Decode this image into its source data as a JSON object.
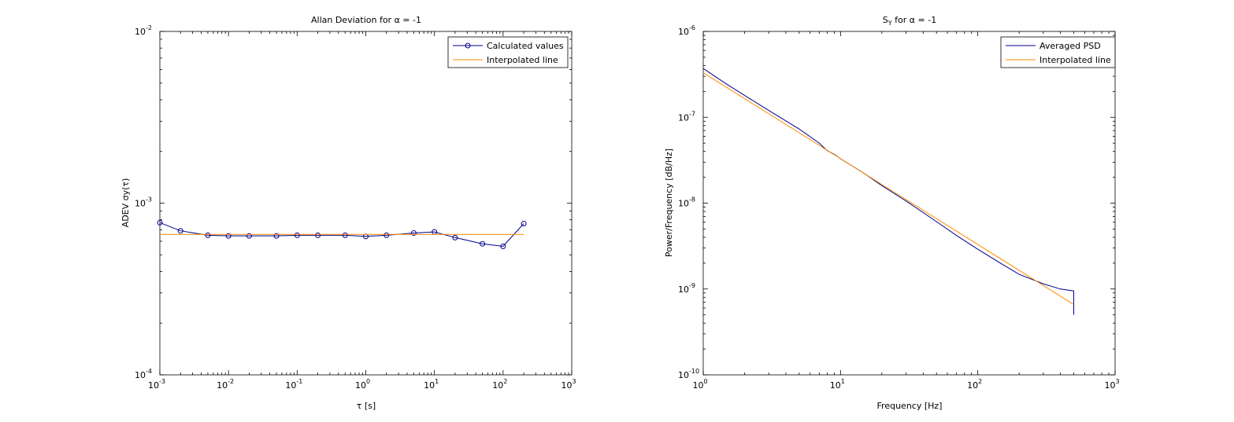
{
  "chart_data": [
    {
      "type": "line",
      "xscale": "log",
      "yscale": "log",
      "title": "Allan Deviation for α = -1",
      "xlabel": "τ [s]",
      "ylabel": "ADEV σy(τ)",
      "xlim": [
        0.001,
        1000
      ],
      "ylim": [
        0.0001,
        0.01
      ],
      "x_ticks": [
        {
          "base": "10",
          "exp": "-3"
        },
        {
          "base": "10",
          "exp": "-2"
        },
        {
          "base": "10",
          "exp": "-1"
        },
        {
          "base": "10",
          "exp": "0"
        },
        {
          "base": "10",
          "exp": "1"
        },
        {
          "base": "10",
          "exp": "2"
        },
        {
          "base": "10",
          "exp": "3"
        }
      ],
      "y_ticks": [
        {
          "base": "10",
          "exp": "-4"
        },
        {
          "base": "10",
          "exp": "-3"
        },
        {
          "base": "10",
          "exp": "-2"
        }
      ],
      "legend_position": "top-right",
      "series": [
        {
          "name": "Calculated values",
          "color": "#00008b",
          "marker": "circle",
          "x": [
            0.001,
            0.002,
            0.005,
            0.01,
            0.02,
            0.05,
            0.1,
            0.2,
            0.5,
            1,
            2,
            5,
            10,
            20,
            50,
            100,
            200
          ],
          "y": [
            0.00077,
            0.00069,
            0.00065,
            0.000645,
            0.000645,
            0.000645,
            0.00065,
            0.00065,
            0.00065,
            0.00064,
            0.00065,
            0.00067,
            0.00068,
            0.00063,
            0.00058,
            0.00056,
            0.00076
          ]
        },
        {
          "name": "Interpolated line",
          "color": "#ff8c00",
          "marker": "none",
          "x": [
            0.001,
            200
          ],
          "y": [
            0.000658,
            0.000658
          ]
        }
      ]
    },
    {
      "type": "line",
      "xscale": "log",
      "yscale": "log",
      "title": "S",
      "title_sub": "Y",
      "title_suffix": " for α = -1",
      "xlabel": "Frequency [Hz]",
      "ylabel": "Power/Frequency [dB/Hz]",
      "xlim": [
        1,
        1000
      ],
      "ylim": [
        1e-10,
        1e-06
      ],
      "x_ticks": [
        {
          "base": "10",
          "exp": "0"
        },
        {
          "base": "10",
          "exp": "1"
        },
        {
          "base": "10",
          "exp": "2"
        },
        {
          "base": "10",
          "exp": "3"
        }
      ],
      "y_ticks": [
        {
          "base": "10",
          "exp": "-10"
        },
        {
          "base": "10",
          "exp": "-9"
        },
        {
          "base": "10",
          "exp": "-8"
        },
        {
          "base": "10",
          "exp": "-7"
        },
        {
          "base": "10",
          "exp": "-6"
        }
      ],
      "legend_position": "top-right",
      "series": [
        {
          "name": "Averaged PSD",
          "color": "#00008b",
          "marker": "none",
          "x": [
            1,
            1.5,
            2,
            3,
            5,
            7,
            8,
            9,
            10,
            12,
            15,
            20,
            30,
            50,
            70,
            100,
            150,
            200,
            300,
            400,
            500,
            500
          ],
          "y": [
            3.7e-07,
            2.4e-07,
            1.8e-07,
            1.2e-07,
            7.3e-08,
            5e-08,
            4.1e-08,
            3.7e-08,
            3.3e-08,
            2.75e-08,
            2.2e-08,
            1.6e-08,
            1.06e-08,
            6.1e-09,
            4.2e-09,
            2.9e-09,
            1.95e-09,
            1.48e-09,
            1.15e-09,
            1e-09,
            9.5e-10,
            5e-10
          ]
        },
        {
          "name": "Interpolated line",
          "color": "#ff8c00",
          "marker": "none",
          "x": [
            1,
            500
          ],
          "y": [
            3.3e-07,
            6.6e-10
          ]
        }
      ]
    }
  ]
}
